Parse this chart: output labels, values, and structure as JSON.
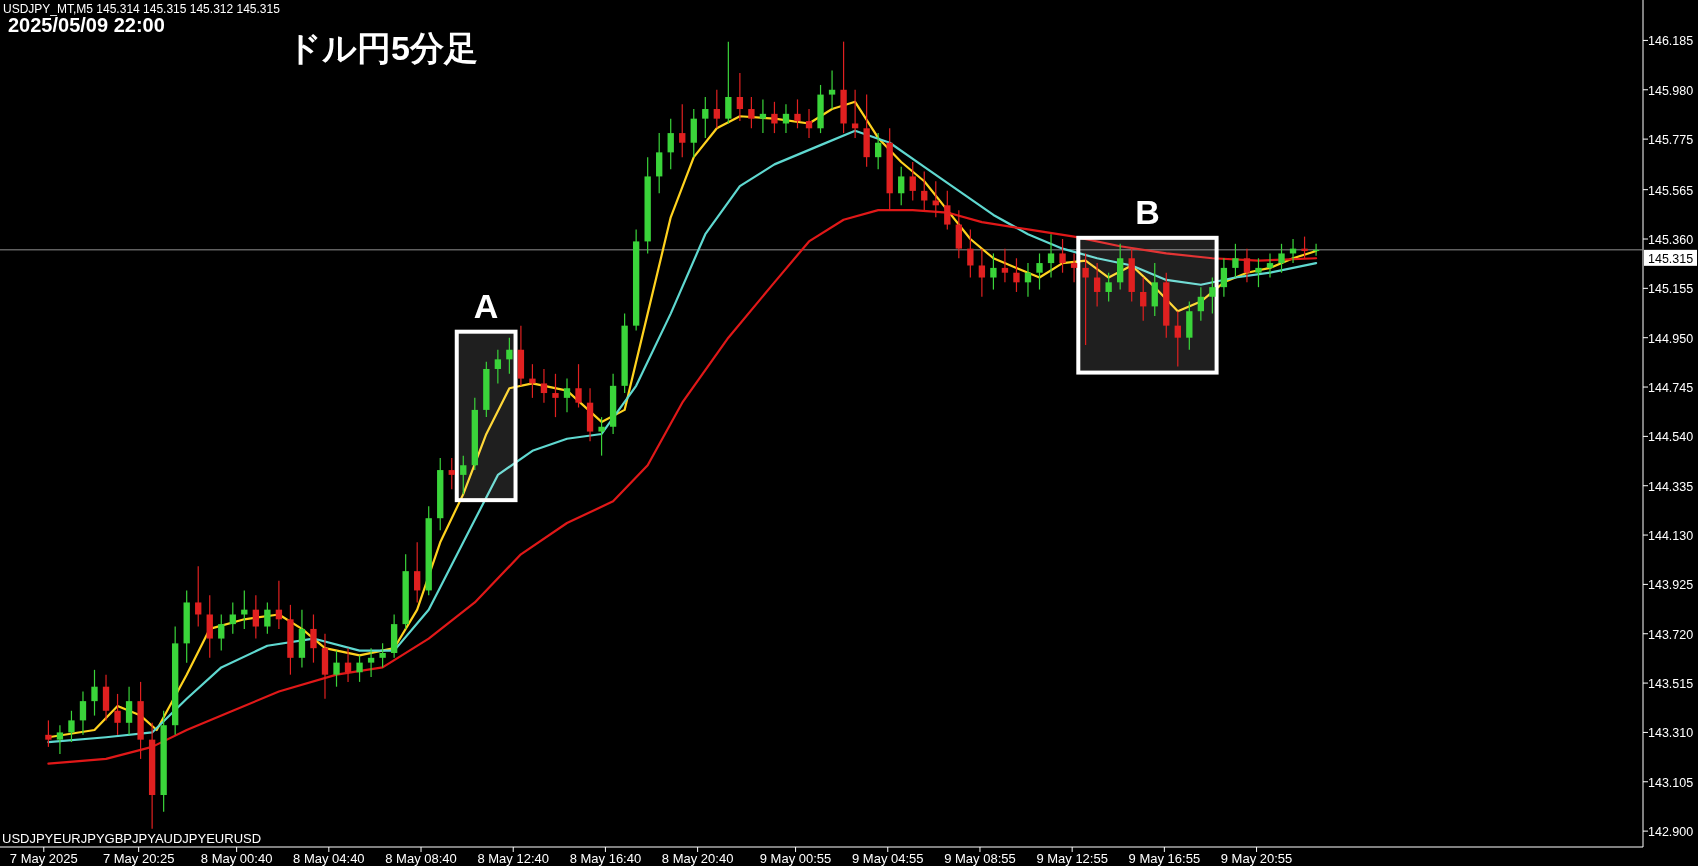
{
  "chart_data": {
    "type": "candlestick",
    "title": "ドル円5分足",
    "subtitle": "2025/05/09 22:00",
    "annotations": [
      "USDJPY_MT,M5  145.314 145.315 145.312 145.315",
      "USDJPYEURJPYGBPJPYAUDJPYEURUSD"
    ],
    "x": [
      "2025-05-07T16:30",
      "2025-05-07T17:00",
      "2025-05-07T17:30",
      "2025-05-07T18:00",
      "2025-05-07T18:30",
      "2025-05-07T19:00",
      "2025-05-07T19:30",
      "2025-05-07T20:00",
      "2025-05-07T20:30",
      "2025-05-07T21:00",
      "2025-05-07T21:30",
      "2025-05-07T22:00",
      "2025-05-07T22:30",
      "2025-05-07T23:00",
      "2025-05-07T23:30",
      "2025-05-08T00:00",
      "2025-05-08T00:30",
      "2025-05-08T01:00",
      "2025-05-08T01:30",
      "2025-05-08T02:00",
      "2025-05-08T02:30",
      "2025-05-08T03:00",
      "2025-05-08T03:30",
      "2025-05-08T04:00",
      "2025-05-08T04:30",
      "2025-05-08T05:00",
      "2025-05-08T05:30",
      "2025-05-08T06:00",
      "2025-05-08T06:30",
      "2025-05-08T07:00",
      "2025-05-08T07:30",
      "2025-05-08T08:00",
      "2025-05-08T08:30",
      "2025-05-08T09:00",
      "2025-05-08T09:30",
      "2025-05-08T10:00",
      "2025-05-08T10:30",
      "2025-05-08T11:00",
      "2025-05-08T11:30",
      "2025-05-08T12:00",
      "2025-05-08T12:30",
      "2025-05-08T13:00",
      "2025-05-08T13:30",
      "2025-05-08T14:00",
      "2025-05-08T14:30",
      "2025-05-08T15:00",
      "2025-05-08T15:30",
      "2025-05-08T16:00",
      "2025-05-08T16:30",
      "2025-05-08T17:00",
      "2025-05-08T17:30",
      "2025-05-08T18:00",
      "2025-05-08T18:30",
      "2025-05-08T19:00",
      "2025-05-08T19:30",
      "2025-05-08T20:00",
      "2025-05-08T20:30",
      "2025-05-08T21:00",
      "2025-05-08T21:30",
      "2025-05-08T22:00",
      "2025-05-08T22:30",
      "2025-05-08T23:00",
      "2025-05-08T23:30",
      "2025-05-09T00:00",
      "2025-05-09T00:30",
      "2025-05-09T01:00",
      "2025-05-09T01:30",
      "2025-05-09T02:00",
      "2025-05-09T02:30",
      "2025-05-09T03:00",
      "2025-05-09T03:30",
      "2025-05-09T04:00",
      "2025-05-09T04:30",
      "2025-05-09T05:00",
      "2025-05-09T05:30",
      "2025-05-09T06:00",
      "2025-05-09T06:30",
      "2025-05-09T07:00",
      "2025-05-09T07:30",
      "2025-05-09T08:00",
      "2025-05-09T08:30",
      "2025-05-09T09:00",
      "2025-05-09T09:30",
      "2025-05-09T10:00",
      "2025-05-09T10:30",
      "2025-05-09T11:00",
      "2025-05-09T11:30",
      "2025-05-09T12:00",
      "2025-05-09T12:30",
      "2025-05-09T13:00",
      "2025-05-09T13:30",
      "2025-05-09T14:00",
      "2025-05-09T14:30",
      "2025-05-09T15:00",
      "2025-05-09T15:30",
      "2025-05-09T16:00",
      "2025-05-09T16:30",
      "2025-05-09T17:00",
      "2025-05-09T17:30",
      "2025-05-09T18:00",
      "2025-05-09T18:30",
      "2025-05-09T19:00",
      "2025-05-09T19:30",
      "2025-05-09T20:00",
      "2025-05-09T20:30",
      "2025-05-09T21:00",
      "2025-05-09T21:30",
      "2025-05-09T22:00",
      "2025-05-09T22:30",
      "2025-05-09T23:00",
      "2025-05-09T23:30"
    ],
    "ohlc": [
      [
        143.3,
        143.36,
        143.25,
        143.28
      ],
      [
        143.28,
        143.34,
        143.22,
        143.31
      ],
      [
        143.31,
        143.4,
        143.27,
        143.36
      ],
      [
        143.36,
        143.48,
        143.3,
        143.44
      ],
      [
        143.44,
        143.57,
        143.38,
        143.5
      ],
      [
        143.5,
        143.55,
        143.36,
        143.4
      ],
      [
        143.4,
        143.47,
        143.3,
        143.35
      ],
      [
        143.35,
        143.5,
        143.3,
        143.44
      ],
      [
        143.44,
        143.52,
        143.2,
        143.28
      ],
      [
        143.28,
        143.35,
        142.91,
        143.05
      ],
      [
        143.05,
        143.4,
        142.98,
        143.34
      ],
      [
        143.34,
        143.75,
        143.3,
        143.68
      ],
      [
        143.68,
        143.9,
        143.6,
        143.85
      ],
      [
        143.85,
        144.0,
        143.75,
        143.8
      ],
      [
        143.8,
        143.88,
        143.62,
        143.7
      ],
      [
        143.7,
        143.8,
        143.65,
        143.76
      ],
      [
        143.76,
        143.85,
        143.72,
        143.8
      ],
      [
        143.8,
        143.9,
        143.74,
        143.82
      ],
      [
        143.82,
        143.88,
        143.7,
        143.75
      ],
      [
        143.75,
        143.85,
        143.72,
        143.82
      ],
      [
        143.82,
        143.94,
        143.74,
        143.78
      ],
      [
        143.78,
        143.84,
        143.55,
        143.62
      ],
      [
        143.62,
        143.82,
        143.58,
        143.74
      ],
      [
        143.74,
        143.8,
        143.6,
        143.66
      ],
      [
        143.66,
        143.72,
        143.45,
        143.55
      ],
      [
        143.55,
        143.65,
        143.5,
        143.6
      ],
      [
        143.6,
        143.66,
        143.52,
        143.56
      ],
      [
        143.56,
        143.63,
        143.52,
        143.6
      ],
      [
        143.6,
        143.66,
        143.54,
        143.62
      ],
      [
        143.62,
        143.68,
        143.58,
        143.64
      ],
      [
        143.64,
        143.8,
        143.62,
        143.76
      ],
      [
        143.76,
        144.05,
        143.74,
        143.98
      ],
      [
        143.98,
        144.1,
        143.85,
        143.9
      ],
      [
        143.9,
        144.25,
        143.88,
        144.2
      ],
      [
        144.2,
        144.45,
        144.15,
        144.4
      ],
      [
        144.4,
        144.45,
        144.32,
        144.38
      ],
      [
        144.38,
        144.46,
        144.3,
        144.42
      ],
      [
        144.42,
        144.7,
        144.4,
        144.65
      ],
      [
        144.65,
        144.85,
        144.62,
        144.82
      ],
      [
        144.82,
        144.9,
        144.76,
        144.86
      ],
      [
        144.86,
        144.95,
        144.8,
        144.9
      ],
      [
        144.9,
        145.0,
        144.75,
        144.78
      ],
      [
        144.78,
        144.84,
        144.7,
        144.76
      ],
      [
        144.76,
        144.82,
        144.68,
        144.72
      ],
      [
        144.72,
        144.8,
        144.62,
        144.7
      ],
      [
        144.7,
        144.78,
        144.64,
        144.74
      ],
      [
        144.74,
        144.84,
        144.66,
        144.68
      ],
      [
        144.68,
        144.74,
        144.52,
        144.56
      ],
      [
        144.56,
        144.62,
        144.46,
        144.58
      ],
      [
        144.58,
        144.8,
        144.55,
        144.75
      ],
      [
        144.75,
        145.05,
        144.72,
        145.0
      ],
      [
        145.0,
        145.4,
        144.98,
        145.35
      ],
      [
        145.35,
        145.7,
        145.3,
        145.62
      ],
      [
        145.62,
        145.8,
        145.55,
        145.72
      ],
      [
        145.72,
        145.86,
        145.65,
        145.8
      ],
      [
        145.8,
        145.92,
        145.7,
        145.76
      ],
      [
        145.76,
        145.9,
        145.7,
        145.86
      ],
      [
        145.86,
        145.95,
        145.78,
        145.9
      ],
      [
        145.9,
        145.98,
        145.82,
        145.86
      ],
      [
        145.86,
        146.18,
        145.84,
        145.95
      ],
      [
        145.95,
        146.05,
        145.85,
        145.9
      ],
      [
        145.9,
        145.95,
        145.82,
        145.86
      ],
      [
        145.86,
        145.94,
        145.8,
        145.88
      ],
      [
        145.88,
        145.93,
        145.8,
        145.84
      ],
      [
        145.84,
        145.92,
        145.8,
        145.88
      ],
      [
        145.88,
        145.94,
        145.82,
        145.85
      ],
      [
        145.85,
        145.9,
        145.78,
        145.82
      ],
      [
        145.82,
        146.0,
        145.8,
        145.96
      ],
      [
        145.96,
        146.06,
        145.9,
        145.98
      ],
      [
        145.98,
        146.18,
        145.8,
        145.84
      ],
      [
        145.84,
        145.98,
        145.78,
        145.82
      ],
      [
        145.82,
        145.96,
        145.66,
        145.7
      ],
      [
        145.7,
        145.8,
        145.65,
        145.76
      ],
      [
        145.76,
        145.82,
        145.48,
        145.55
      ],
      [
        145.55,
        145.66,
        145.5,
        145.62
      ],
      [
        145.62,
        145.68,
        145.52,
        145.56
      ],
      [
        145.56,
        145.64,
        145.48,
        145.52
      ],
      [
        145.52,
        145.6,
        145.45,
        145.5
      ],
      [
        145.5,
        145.56,
        145.4,
        145.42
      ],
      [
        145.42,
        145.48,
        145.28,
        145.32
      ],
      [
        145.32,
        145.4,
        145.2,
        145.25
      ],
      [
        145.25,
        145.32,
        145.12,
        145.2
      ],
      [
        145.2,
        145.3,
        145.15,
        145.24
      ],
      [
        145.24,
        145.32,
        145.18,
        145.22
      ],
      [
        145.22,
        145.28,
        145.14,
        145.18
      ],
      [
        145.18,
        145.26,
        145.12,
        145.22
      ],
      [
        145.22,
        145.3,
        145.15,
        145.26
      ],
      [
        145.26,
        145.38,
        145.2,
        145.3
      ],
      [
        145.3,
        145.36,
        145.22,
        145.26
      ],
      [
        145.26,
        145.3,
        145.18,
        145.24
      ],
      [
        145.24,
        145.3,
        144.92,
        145.2
      ],
      [
        145.2,
        145.26,
        145.08,
        145.14
      ],
      [
        145.14,
        145.22,
        145.1,
        145.18
      ],
      [
        145.18,
        145.34,
        145.15,
        145.28
      ],
      [
        145.28,
        145.32,
        145.1,
        145.14
      ],
      [
        145.14,
        145.2,
        145.02,
        145.08
      ],
      [
        145.08,
        145.26,
        145.04,
        145.18
      ],
      [
        145.18,
        145.22,
        144.95,
        145.0
      ],
      [
        145.0,
        145.06,
        144.83,
        144.95
      ],
      [
        144.95,
        145.1,
        144.9,
        145.06
      ],
      [
        145.06,
        145.16,
        145.02,
        145.12
      ],
      [
        145.12,
        145.2,
        145.05,
        145.16
      ],
      [
        145.16,
        145.28,
        145.12,
        145.24
      ],
      [
        145.24,
        145.34,
        145.2,
        145.28
      ],
      [
        145.28,
        145.32,
        145.18,
        145.22
      ],
      [
        145.22,
        145.28,
        145.16,
        145.24
      ],
      [
        145.24,
        145.3,
        145.2,
        145.26
      ],
      [
        145.26,
        145.34,
        145.22,
        145.3
      ],
      [
        145.3,
        145.36,
        145.26,
        145.32
      ],
      [
        145.32,
        145.37,
        145.28,
        145.31
      ],
      [
        145.31,
        145.34,
        145.29,
        145.315
      ]
    ],
    "series": [
      {
        "type": "line",
        "color": "#ffd21e",
        "x": [
          "2025-05-07T16:30",
          "2025-05-07T18:30",
          "2025-05-07T19:30",
          "2025-05-07T20:30",
          "2025-05-07T21:12",
          "2025-05-07T22:30",
          "2025-05-07T23:30",
          "2025-05-08T01:00",
          "2025-05-08T02:30",
          "2025-05-08T03:30",
          "2025-05-08T04:30",
          "2025-05-08T06:00",
          "2025-05-08T07:30",
          "2025-05-08T08:30",
          "2025-05-08T09:30",
          "2025-05-08T10:30",
          "2025-05-08T11:30",
          "2025-05-08T12:30",
          "2025-05-08T13:30",
          "2025-05-08T15:00",
          "2025-05-08T16:30",
          "2025-05-08T17:30",
          "2025-05-08T18:30",
          "2025-05-08T19:30",
          "2025-05-08T20:30",
          "2025-05-08T21:30",
          "2025-05-08T22:30",
          "2025-05-09T00:00",
          "2025-05-09T01:30",
          "2025-05-09T02:30",
          "2025-05-09T03:30",
          "2025-05-09T04:30",
          "2025-05-09T05:30",
          "2025-05-09T06:30",
          "2025-05-09T07:30",
          "2025-05-09T08:30",
          "2025-05-09T09:30",
          "2025-05-09T10:30",
          "2025-05-09T11:30",
          "2025-05-09T12:30",
          "2025-05-09T13:30",
          "2025-05-09T14:30",
          "2025-05-09T15:30",
          "2025-05-09T16:30",
          "2025-05-09T17:30",
          "2025-05-09T18:30",
          "2025-05-09T19:30",
          "2025-05-09T20:30",
          "2025-05-09T21:30",
          "2025-05-09T22:30",
          "2025-05-09T23:30"
        ],
        "values": [
          143.29,
          143.32,
          143.42,
          143.38,
          143.32,
          143.55,
          143.74,
          143.78,
          143.8,
          143.74,
          143.66,
          143.63,
          143.66,
          143.82,
          144.1,
          144.3,
          144.55,
          144.74,
          144.76,
          144.73,
          144.6,
          144.65,
          145.05,
          145.45,
          145.7,
          145.82,
          145.87,
          145.86,
          145.84,
          145.9,
          145.93,
          145.78,
          145.68,
          145.6,
          145.48,
          145.36,
          145.28,
          145.24,
          145.2,
          145.26,
          145.27,
          145.2,
          145.25,
          145.16,
          145.06,
          145.1,
          145.18,
          145.22,
          145.24,
          145.28,
          145.31
        ]
      },
      {
        "type": "line",
        "color": "#5fd8d0",
        "x": [
          "2025-05-07T16:30",
          "2025-05-07T19:00",
          "2025-05-07T21:00",
          "2025-05-07T22:30",
          "2025-05-08T00:00",
          "2025-05-08T02:00",
          "2025-05-08T04:00",
          "2025-05-08T06:00",
          "2025-05-08T07:30",
          "2025-05-08T09:00",
          "2025-05-08T10:30",
          "2025-05-08T12:00",
          "2025-05-08T13:30",
          "2025-05-08T15:00",
          "2025-05-08T16:30",
          "2025-05-08T18:00",
          "2025-05-08T19:30",
          "2025-05-08T21:00",
          "2025-05-08T22:30",
          "2025-05-09T00:00",
          "2025-05-09T02:00",
          "2025-05-09T03:30",
          "2025-05-09T05:00",
          "2025-05-09T06:30",
          "2025-05-09T08:00",
          "2025-05-09T09:30",
          "2025-05-09T11:00",
          "2025-05-09T12:30",
          "2025-05-09T14:00",
          "2025-05-09T15:30",
          "2025-05-09T17:00",
          "2025-05-09T18:30",
          "2025-05-09T20:00",
          "2025-05-09T21:30",
          "2025-05-09T23:30"
        ],
        "values": [
          143.27,
          143.29,
          143.31,
          143.45,
          143.58,
          143.67,
          143.7,
          143.65,
          143.65,
          143.82,
          144.1,
          144.38,
          144.48,
          144.53,
          144.55,
          144.75,
          145.05,
          145.38,
          145.58,
          145.67,
          145.75,
          145.81,
          145.76,
          145.66,
          145.56,
          145.46,
          145.38,
          145.32,
          145.28,
          145.25,
          145.19,
          145.17,
          145.2,
          145.22,
          145.26
        ]
      },
      {
        "type": "line",
        "color": "#e01818",
        "x": [
          "2025-05-07T16:30",
          "2025-05-07T19:00",
          "2025-05-07T21:00",
          "2025-05-07T22:30",
          "2025-05-08T00:30",
          "2025-05-08T02:30",
          "2025-05-08T05:00",
          "2025-05-08T07:00",
          "2025-05-08T09:00",
          "2025-05-08T11:00",
          "2025-05-08T13:00",
          "2025-05-08T15:00",
          "2025-05-08T17:00",
          "2025-05-08T18:30",
          "2025-05-08T20:00",
          "2025-05-08T22:00",
          "2025-05-09T00:00",
          "2025-05-09T01:30",
          "2025-05-09T03:00",
          "2025-05-09T04:30",
          "2025-05-09T06:00",
          "2025-05-09T07:30",
          "2025-05-09T09:00",
          "2025-05-09T11:00",
          "2025-05-09T13:00",
          "2025-05-09T15:00",
          "2025-05-09T17:00",
          "2025-05-09T19:00",
          "2025-05-09T21:00",
          "2025-05-09T23:30"
        ],
        "values": [
          143.18,
          143.2,
          143.25,
          143.32,
          143.4,
          143.48,
          143.55,
          143.58,
          143.7,
          143.85,
          144.05,
          144.18,
          144.27,
          144.42,
          144.68,
          144.95,
          145.18,
          145.35,
          145.44,
          145.48,
          145.48,
          145.47,
          145.43,
          145.4,
          145.37,
          145.33,
          145.3,
          145.28,
          145.27,
          145.28
        ]
      }
    ],
    "ref_lines": [
      {
        "axis": "y",
        "value": 145.315,
        "label": "145.315",
        "color": "#909090"
      }
    ],
    "bands": [
      {
        "axis": "x",
        "from": "2025-05-08T10:13",
        "to": "2025-05-08T12:46",
        "label": "A",
        "color": "#ffffff"
      },
      {
        "axis": "x",
        "from": "2025-05-09T13:11",
        "to": "2025-05-09T19:11",
        "label": "B",
        "color": "#ffffff"
      }
    ],
    "xlim": [
      "2025-05-07T14:24",
      "2025-05-10T13:41"
    ],
    "ylim": [
      142.834,
      146.353
    ],
    "xticks": [
      {
        "value": "2025-05-07T16:18",
        "label": "7 May 2025"
      },
      {
        "value": "2025-05-07T20:25",
        "label": "7 May 20:25"
      },
      {
        "value": "2025-05-08T00:40",
        "label": "8 May 00:40"
      },
      {
        "value": "2025-05-08T04:40",
        "label": "8 May 04:40"
      },
      {
        "value": "2025-05-08T08:40",
        "label": "8 May 08:40"
      },
      {
        "value": "2025-05-08T12:40",
        "label": "8 May 12:40"
      },
      {
        "value": "2025-05-08T16:40",
        "label": "8 May 16:40"
      },
      {
        "value": "2025-05-08T20:40",
        "label": "8 May 20:40"
      },
      {
        "value": "2025-05-09T00:55",
        "label": "9 May 00:55"
      },
      {
        "value": "2025-05-09T04:55",
        "label": "9 May 04:55"
      },
      {
        "value": "2025-05-09T08:55",
        "label": "9 May 08:55"
      },
      {
        "value": "2025-05-09T12:55",
        "label": "9 May 12:55"
      },
      {
        "value": "2025-05-09T16:55",
        "label": "9 May 16:55"
      },
      {
        "value": "2025-05-09T20:55",
        "label": "9 May 20:55"
      }
    ],
    "yticks": [
      {
        "value": 142.9,
        "label": "142.900"
      },
      {
        "value": 143.105,
        "label": "143.105"
      },
      {
        "value": 143.31,
        "label": "143.310"
      },
      {
        "value": 143.515,
        "label": "143.515"
      },
      {
        "value": 143.72,
        "label": "143.720"
      },
      {
        "value": 143.925,
        "label": "143.925"
      },
      {
        "value": 144.13,
        "label": "144.130"
      },
      {
        "value": 144.335,
        "label": "144.335"
      },
      {
        "value": 144.54,
        "label": "144.540"
      },
      {
        "value": 144.745,
        "label": "144.745"
      },
      {
        "value": 144.95,
        "label": "144.950"
      },
      {
        "value": 145.155,
        "label": "145.155"
      },
      {
        "value": 145.36,
        "label": "145.360"
      },
      {
        "value": 145.565,
        "label": "145.565"
      },
      {
        "value": 145.775,
        "label": "145.775"
      },
      {
        "value": 145.98,
        "label": "145.980"
      },
      {
        "value": 146.185,
        "label": "146.185"
      }
    ]
  }
}
